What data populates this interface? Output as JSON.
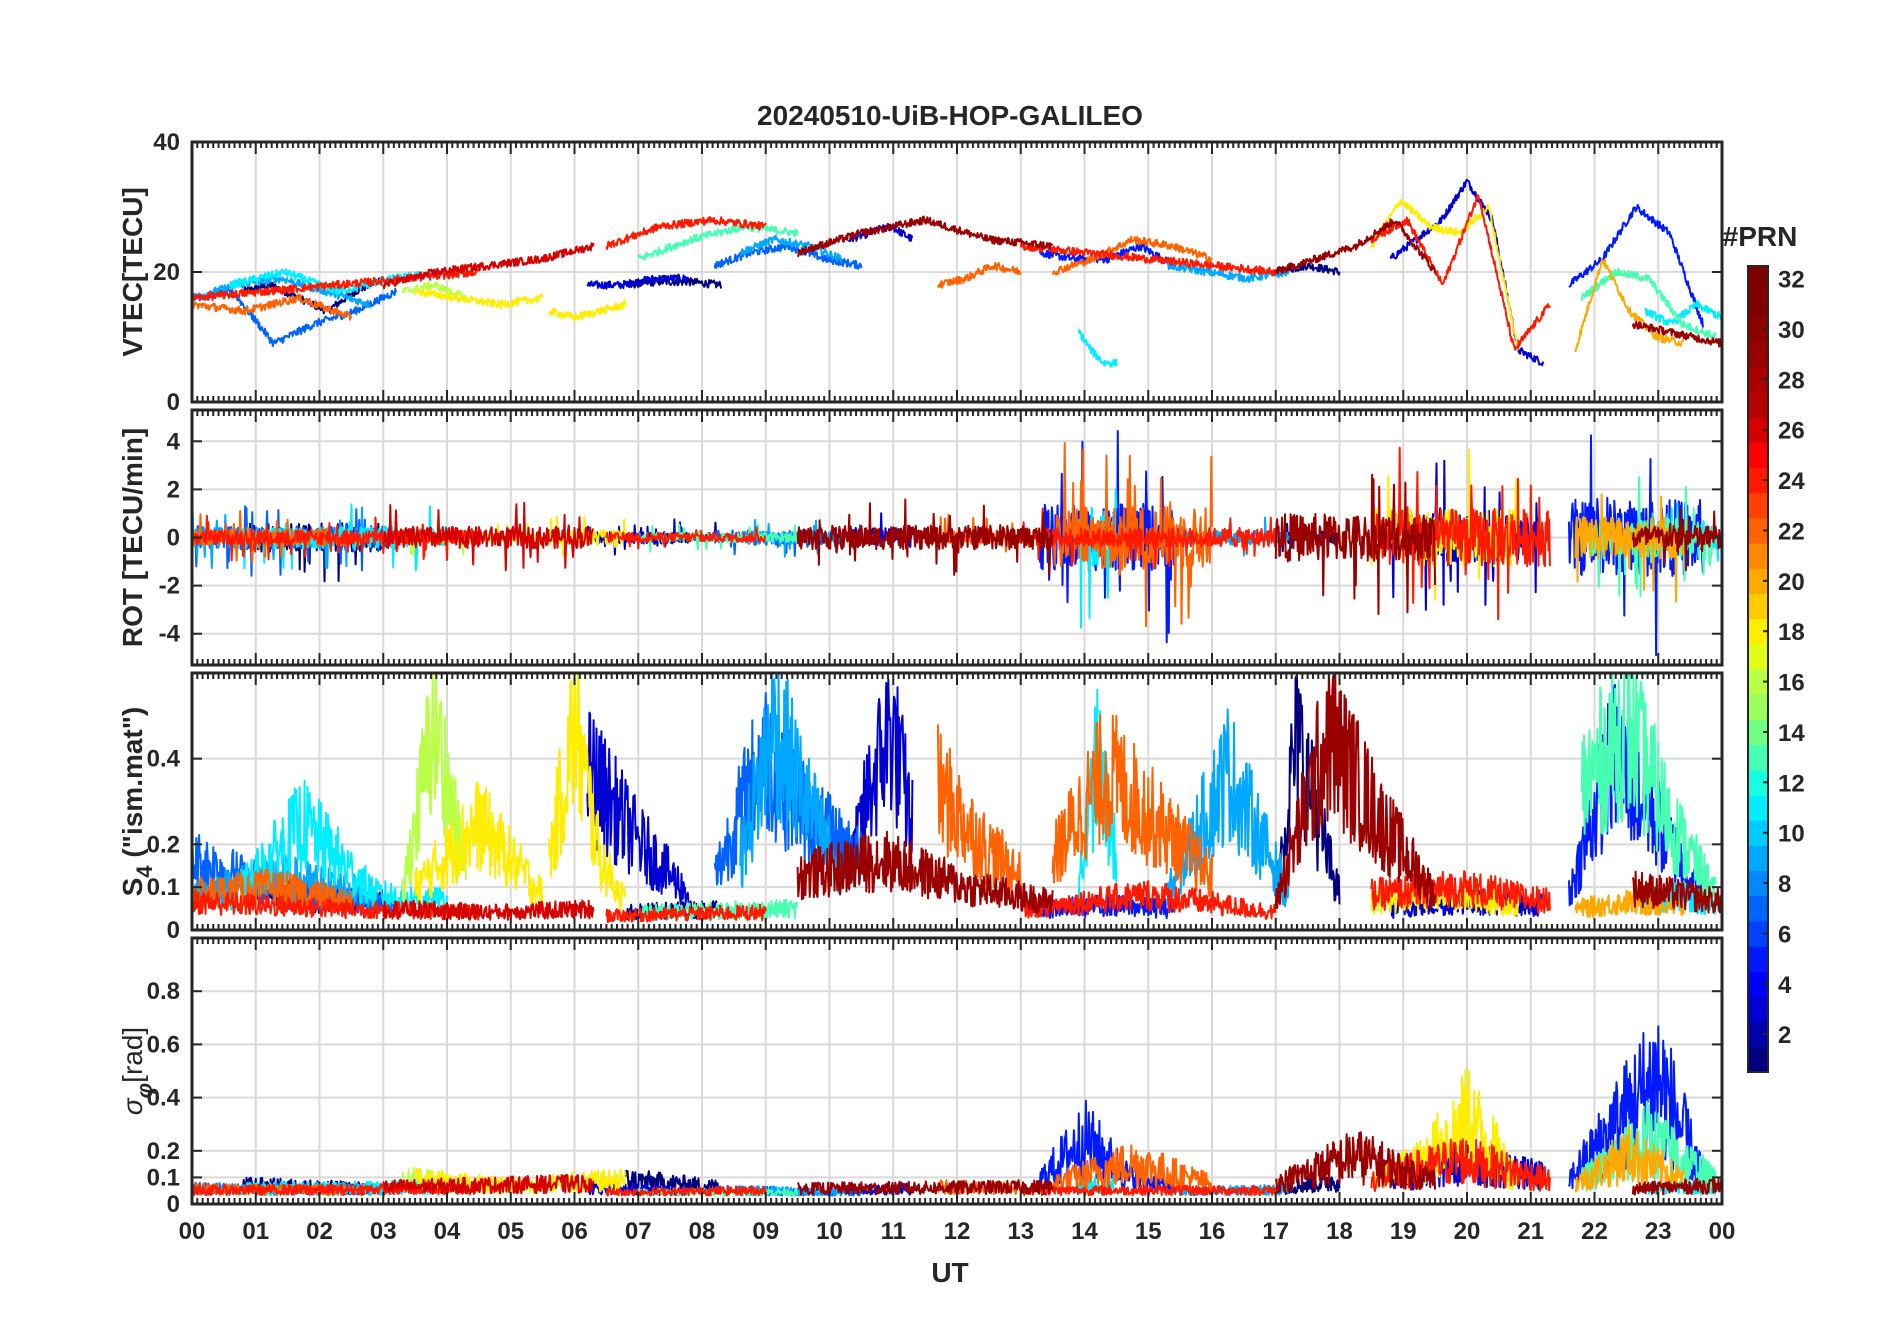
{
  "chart_data": {
    "type": "line",
    "title": "20240510-UiB-HOP-GALILEO",
    "xlabel": "UT",
    "x_range_hours": [
      0,
      24
    ],
    "x_ticks": [
      "00",
      "01",
      "02",
      "03",
      "04",
      "05",
      "06",
      "07",
      "08",
      "09",
      "10",
      "11",
      "12",
      "13",
      "14",
      "15",
      "16",
      "17",
      "18",
      "19",
      "20",
      "21",
      "22",
      "23",
      "00"
    ],
    "grid": true,
    "panels": [
      {
        "id": "vtec",
        "ylabel": "VTEC[TECU]",
        "ylim": [
          0,
          40
        ],
        "yticks": [
          0,
          20,
          40
        ],
        "ytick_labels": [
          "0",
          "20",
          "40"
        ],
        "description": "Vertical total electron content per GALILEO PRN"
      },
      {
        "id": "rot",
        "ylabel": "ROT [TECU/min]",
        "ylim": [
          -5.3,
          5.3
        ],
        "yticks": [
          -4,
          -2,
          0,
          2,
          4
        ],
        "ytick_labels": [
          "-4",
          "-2",
          "0",
          "2",
          "4"
        ],
        "description": "Rate of TEC per GALILEO PRN"
      },
      {
        "id": "s4",
        "ylabel_main": "S",
        "ylabel_sub": "4",
        "ylabel_rest": " (\"ism.mat\")",
        "ylim": [
          0,
          0.6
        ],
        "yticks": [
          0,
          0.1,
          0.2,
          0.4
        ],
        "ytick_labels": [
          "0",
          "0.1",
          "0.2",
          "0.4"
        ],
        "description": "Amplitude scintillation index per GALILEO PRN"
      },
      {
        "id": "sigma",
        "ylabel_main": "σ",
        "ylabel_sub": "φ",
        "ylabel_rest": "[rad]",
        "ylim": [
          0,
          1
        ],
        "yticks": [
          0,
          0.1,
          0.2,
          0.4,
          0.6,
          0.8
        ],
        "ytick_labels": [
          "0",
          "0.1",
          "0.2",
          "0.4",
          "0.6",
          "0.8"
        ],
        "description": "Phase scintillation index per GALILEO PRN"
      }
    ],
    "colorbar": {
      "label": "#PRN",
      "range": [
        1,
        32
      ],
      "ticks": [
        2,
        4,
        6,
        8,
        10,
        12,
        14,
        16,
        18,
        20,
        22,
        24,
        26,
        28,
        30,
        32
      ],
      "tick_labels": [
        "2",
        "4",
        "6",
        "8",
        "10",
        "12",
        "14",
        "16",
        "18",
        "20",
        "22",
        "24",
        "26",
        "28",
        "30",
        "32"
      ],
      "colormap": "jet"
    },
    "series": [
      {
        "prn": 2,
        "color": "#00007f",
        "segments": [
          {
            "t": [
              0.8,
              3.0
            ],
            "vtec": [
              17,
              18,
              16,
              14,
              17,
              19
            ],
            "rot_amp": 1.2,
            "s4": [
              0.12,
              0.09,
              0.08
            ],
            "sigma": [
              0.07,
              0.05
            ]
          },
          {
            "t": [
              6.8,
              8.3
            ],
            "vtec": [
              18,
              18.5,
              18.5,
              18
            ],
            "rot_amp": 0.4,
            "s4": [
              0.05,
              0.06
            ],
            "sigma": [
              0.1,
              0.06
            ]
          },
          {
            "t": [
              17.0,
              18.0
            ],
            "vtec": [
              20,
              21,
              20
            ],
            "rot_amp": 0.5,
            "s4": [
              0.1,
              0.55,
              0.3,
              0.1
            ],
            "sigma": [
              0.05,
              0.1
            ]
          }
        ]
      },
      {
        "prn": 4,
        "color": "#0000d5",
        "segments": [
          {
            "t": [
              6.2,
              7.8
            ],
            "vtec": [
              18,
              18,
              19,
              19
            ],
            "rot_amp": 0.5,
            "s4": [
              0.45,
              0.25,
              0.1
            ],
            "sigma": [
              0.05,
              0.04
            ]
          },
          {
            "t": [
              10.3,
              11.3
            ],
            "vtec": [
              25,
              26,
              27,
              25
            ],
            "rot_amp": 0.8,
            "s4": [
              0.15,
              0.4,
              0.57,
              0.3
            ],
            "sigma": [
              0.04,
              0.05
            ]
          },
          {
            "t": [
              18.8,
              21.2
            ],
            "vtec": [
              22,
              25,
              28,
              34,
              28,
              8,
              6
            ],
            "rot_amp": 2.0,
            "s4": [
              0.06,
              0.08,
              0.07
            ],
            "sigma": [
              0.1,
              0.2,
              0.12
            ]
          }
        ]
      },
      {
        "prn": 6,
        "color": "#0019ff",
        "segments": [
          {
            "t": [
              13.3,
              15.4
            ],
            "vtec": [
              23,
              22,
              22,
              24,
              21
            ],
            "rot_amp": 2.8,
            "s4": [
              0.06,
              0.07,
              0.06
            ],
            "sigma": [
              0.1,
              0.34,
              0.12,
              0.06
            ]
          },
          {
            "t": [
              21.6,
              23.7
            ],
            "vtec": [
              18,
              22,
              30,
              26,
              12
            ],
            "rot_amp": 3.2,
            "s4": [
              0.1,
              0.5,
              0.3,
              0.08
            ],
            "sigma": [
              0.1,
              0.4,
              0.69,
              0.12
            ]
          }
        ]
      },
      {
        "prn": 8,
        "color": "#0062ff",
        "segments": [
          {
            "t": [
              0.0,
              3.2
            ],
            "vtec": [
              16,
              17,
              9,
              12,
              14,
              17
            ],
            "rot_amp": 1.0,
            "s4": [
              0.2,
              0.1,
              0.07
            ],
            "sigma": [
              0.05,
              0.04
            ]
          },
          {
            "t": [
              8.2,
              10.5
            ],
            "vtec": [
              21,
              23,
              24,
              22,
              21
            ],
            "rot_amp": 0.6,
            "s4": [
              0.15,
              0.5,
              0.3,
              0.2
            ],
            "sigma": [
              0.04,
              0.03
            ]
          }
        ]
      },
      {
        "prn": 10,
        "color": "#00a8ff",
        "segments": [
          {
            "t": [
              0.0,
              2.8
            ],
            "vtec": [
              16,
              18,
              19,
              17,
              15
            ],
            "rot_amp": 0.8,
            "s4": [
              0.1,
              0.15,
              0.1
            ],
            "sigma": [
              0.04,
              0.05
            ]
          },
          {
            "t": [
              8.6,
              10.2
            ],
            "vtec": [
              23,
              25,
              24,
              22
            ],
            "rot_amp": 0.5,
            "s4": [
              0.2,
              0.58,
              0.35,
              0.15
            ],
            "sigma": [
              0.04,
              0.03
            ]
          },
          {
            "t": [
              15.3,
              17.2
            ],
            "vtec": [
              21,
              20,
              19,
              20
            ],
            "rot_amp": 0.6,
            "s4": [
              0.1,
              0.45,
              0.1
            ],
            "sigma": [
              0.03,
              0.05
            ]
          }
        ]
      },
      {
        "prn": 12,
        "color": "#00eeff",
        "segments": [
          {
            "t": [
              0.6,
              4.0
            ],
            "vtec": [
              18,
              20,
              17,
              19,
              20
            ],
            "rot_amp": 0.9,
            "s4": [
              0.08,
              0.3,
              0.1,
              0.08
            ],
            "sigma": [
              0.05,
              0.06
            ]
          },
          {
            "t": [
              13.9,
              14.5
            ],
            "vtec": [
              11,
              8,
              6,
              6
            ],
            "rot_amp": 2.5,
            "s4": [
              0.1,
              0.48,
              0.2
            ],
            "sigma": [
              0.06,
              0.08
            ]
          },
          {
            "t": [
              22.8,
              24.0
            ],
            "vtec": [
              14,
              12,
              15,
              13
            ],
            "rot_amp": 1.0,
            "s4": [
              0.08,
              0.1,
              0.06
            ],
            "sigma": [
              0.05,
              0.06
            ]
          }
        ]
      },
      {
        "prn": 16,
        "color": "#46ffb1",
        "segments": [
          {
            "t": [
              7.0,
              9.5
            ],
            "vtec": [
              22,
              25,
              27,
              26
            ],
            "rot_amp": 0.4,
            "s4": [
              0.05,
              0.06
            ],
            "sigma": [
              0.03,
              0.03
            ]
          },
          {
            "t": [
              21.8,
              23.9
            ],
            "vtec": [
              16,
              20,
              19,
              12,
              10
            ],
            "rot_amp": 1.6,
            "s4": [
              0.4,
              0.58,
              0.3,
              0.1
            ],
            "sigma": [
              0.1,
              0.34,
              0.1
            ]
          }
        ]
      },
      {
        "prn": 18,
        "color": "#b8ff46",
        "segments": [
          {
            "t": [
              3.3,
              4.3
            ],
            "vtec": [
              17,
              18,
              16
            ],
            "rot_amp": 0.5,
            "s4": [
              0.1,
              0.59,
              0.15
            ],
            "sigma": [
              0.12,
              0.06
            ]
          }
        ]
      },
      {
        "prn": 20,
        "color": "#ffee00",
        "segments": [
          {
            "t": [
              3.5,
              5.5
            ],
            "vtec": [
              17,
              16,
              15,
              16
            ],
            "rot_amp": 0.4,
            "s4": [
              0.12,
              0.3,
              0.1
            ],
            "sigma": [
              0.1,
              0.06
            ]
          },
          {
            "t": [
              5.6,
              6.8
            ],
            "vtec": [
              14,
              13,
              14,
              15
            ],
            "rot_amp": 0.6,
            "s4": [
              0.2,
              0.58,
              0.2,
              0.08
            ],
            "sigma": [
              0.08,
              0.1
            ]
          },
          {
            "t": [
              18.5,
              20.8
            ],
            "vtec": [
              24,
              31,
              27,
              26,
              30,
              8
            ],
            "rot_amp": 2.4,
            "s4": [
              0.08,
              0.1,
              0.07
            ],
            "sigma": [
              0.1,
              0.2,
              0.46,
              0.1
            ]
          }
        ]
      },
      {
        "prn": 22,
        "color": "#ffa800",
        "segments": [
          {
            "t": [
              21.7,
              23.4
            ],
            "vtec": [
              8,
              22,
              14,
              10,
              9
            ],
            "rot_amp": 1.8,
            "s4": [
              0.06,
              0.08,
              0.06
            ],
            "sigma": [
              0.08,
              0.25,
              0.1
            ]
          }
        ]
      },
      {
        "prn": 24,
        "color": "#ff6200",
        "segments": [
          {
            "t": [
              0.0,
              2.5
            ],
            "vtec": [
              15,
              14,
              16,
              13
            ],
            "rot_amp": 0.7,
            "s4": [
              0.1,
              0.12,
              0.08
            ],
            "sigma": [
              0.05,
              0.04
            ]
          },
          {
            "t": [
              11.7,
              13.0
            ],
            "vtec": [
              18,
              19,
              21,
              20
            ],
            "rot_amp": 0.6,
            "s4": [
              0.4,
              0.25,
              0.15
            ],
            "sigma": [
              0.06,
              0.05
            ]
          },
          {
            "t": [
              13.5,
              16.0
            ],
            "vtec": [
              20,
              22,
              25,
              24,
              22
            ],
            "rot_amp": 2.6,
            "s4": [
              0.2,
              0.45,
              0.3,
              0.15
            ],
            "sigma": [
              0.08,
              0.2,
              0.08
            ]
          }
        ]
      },
      {
        "prn": 26,
        "color": "#ff1900",
        "segments": [
          {
            "t": [
              0.0,
              4.5
            ],
            "vtec": [
              16,
              17,
              18,
              19,
              20
            ],
            "rot_amp": 0.6,
            "s4": [
              0.08,
              0.06,
              0.05
            ],
            "sigma": [
              0.04,
              0.05
            ]
          },
          {
            "t": [
              6.5,
              9.0
            ],
            "vtec": [
              24,
              27,
              28,
              27
            ],
            "rot_amp": 0.4,
            "s4": [
              0.04,
              0.05
            ],
            "sigma": [
              0.03,
              0.04
            ]
          },
          {
            "t": [
              13.0,
              17.0
            ],
            "vtec": [
              24,
              23,
              22,
              21,
              20
            ],
            "rot_amp": 0.8,
            "s4": [
              0.06,
              0.1,
              0.05
            ],
            "sigma": [
              0.04,
              0.04
            ]
          },
          {
            "t": [
              18.5,
              21.3
            ],
            "vtec": [
              25,
              28,
              18,
              32,
              8,
              15
            ],
            "rot_amp": 2.4,
            "s4": [
              0.1,
              0.12,
              0.08
            ],
            "sigma": [
              0.1,
              0.22,
              0.1
            ]
          }
        ]
      },
      {
        "prn": 28,
        "color": "#d50000",
        "segments": [
          {
            "t": [
              3.0,
              6.3
            ],
            "vtec": [
              18,
              20,
              21,
              22,
              24
            ],
            "rot_amp": 0.9,
            "s4": [
              0.06,
              0.05,
              0.06
            ],
            "sigma": [
              0.06,
              0.08
            ]
          }
        ]
      },
      {
        "prn": 30,
        "color": "#9a0000",
        "segments": [
          {
            "t": [
              9.5,
              13.5
            ],
            "vtec": [
              23,
              26,
              28,
              25,
              24
            ],
            "rot_amp": 1.0,
            "s4": [
              0.15,
              0.2,
              0.12,
              0.08
            ],
            "sigma": [
              0.05,
              0.06
            ]
          },
          {
            "t": [
              17.0,
              19.5
            ],
            "vtec": [
              20,
              22,
              24,
              28,
              20
            ],
            "rot_amp": 2.0,
            "s4": [
              0.08,
              0.55,
              0.3,
              0.1
            ],
            "sigma": [
              0.08,
              0.24,
              0.1
            ]
          },
          {
            "t": [
              22.6,
              24.0
            ],
            "vtec": [
              12,
              11,
              10,
              9
            ],
            "rot_amp": 1.0,
            "s4": [
              0.12,
              0.1,
              0.08
            ],
            "sigma": [
              0.05,
              0.07
            ]
          }
        ]
      }
    ]
  }
}
